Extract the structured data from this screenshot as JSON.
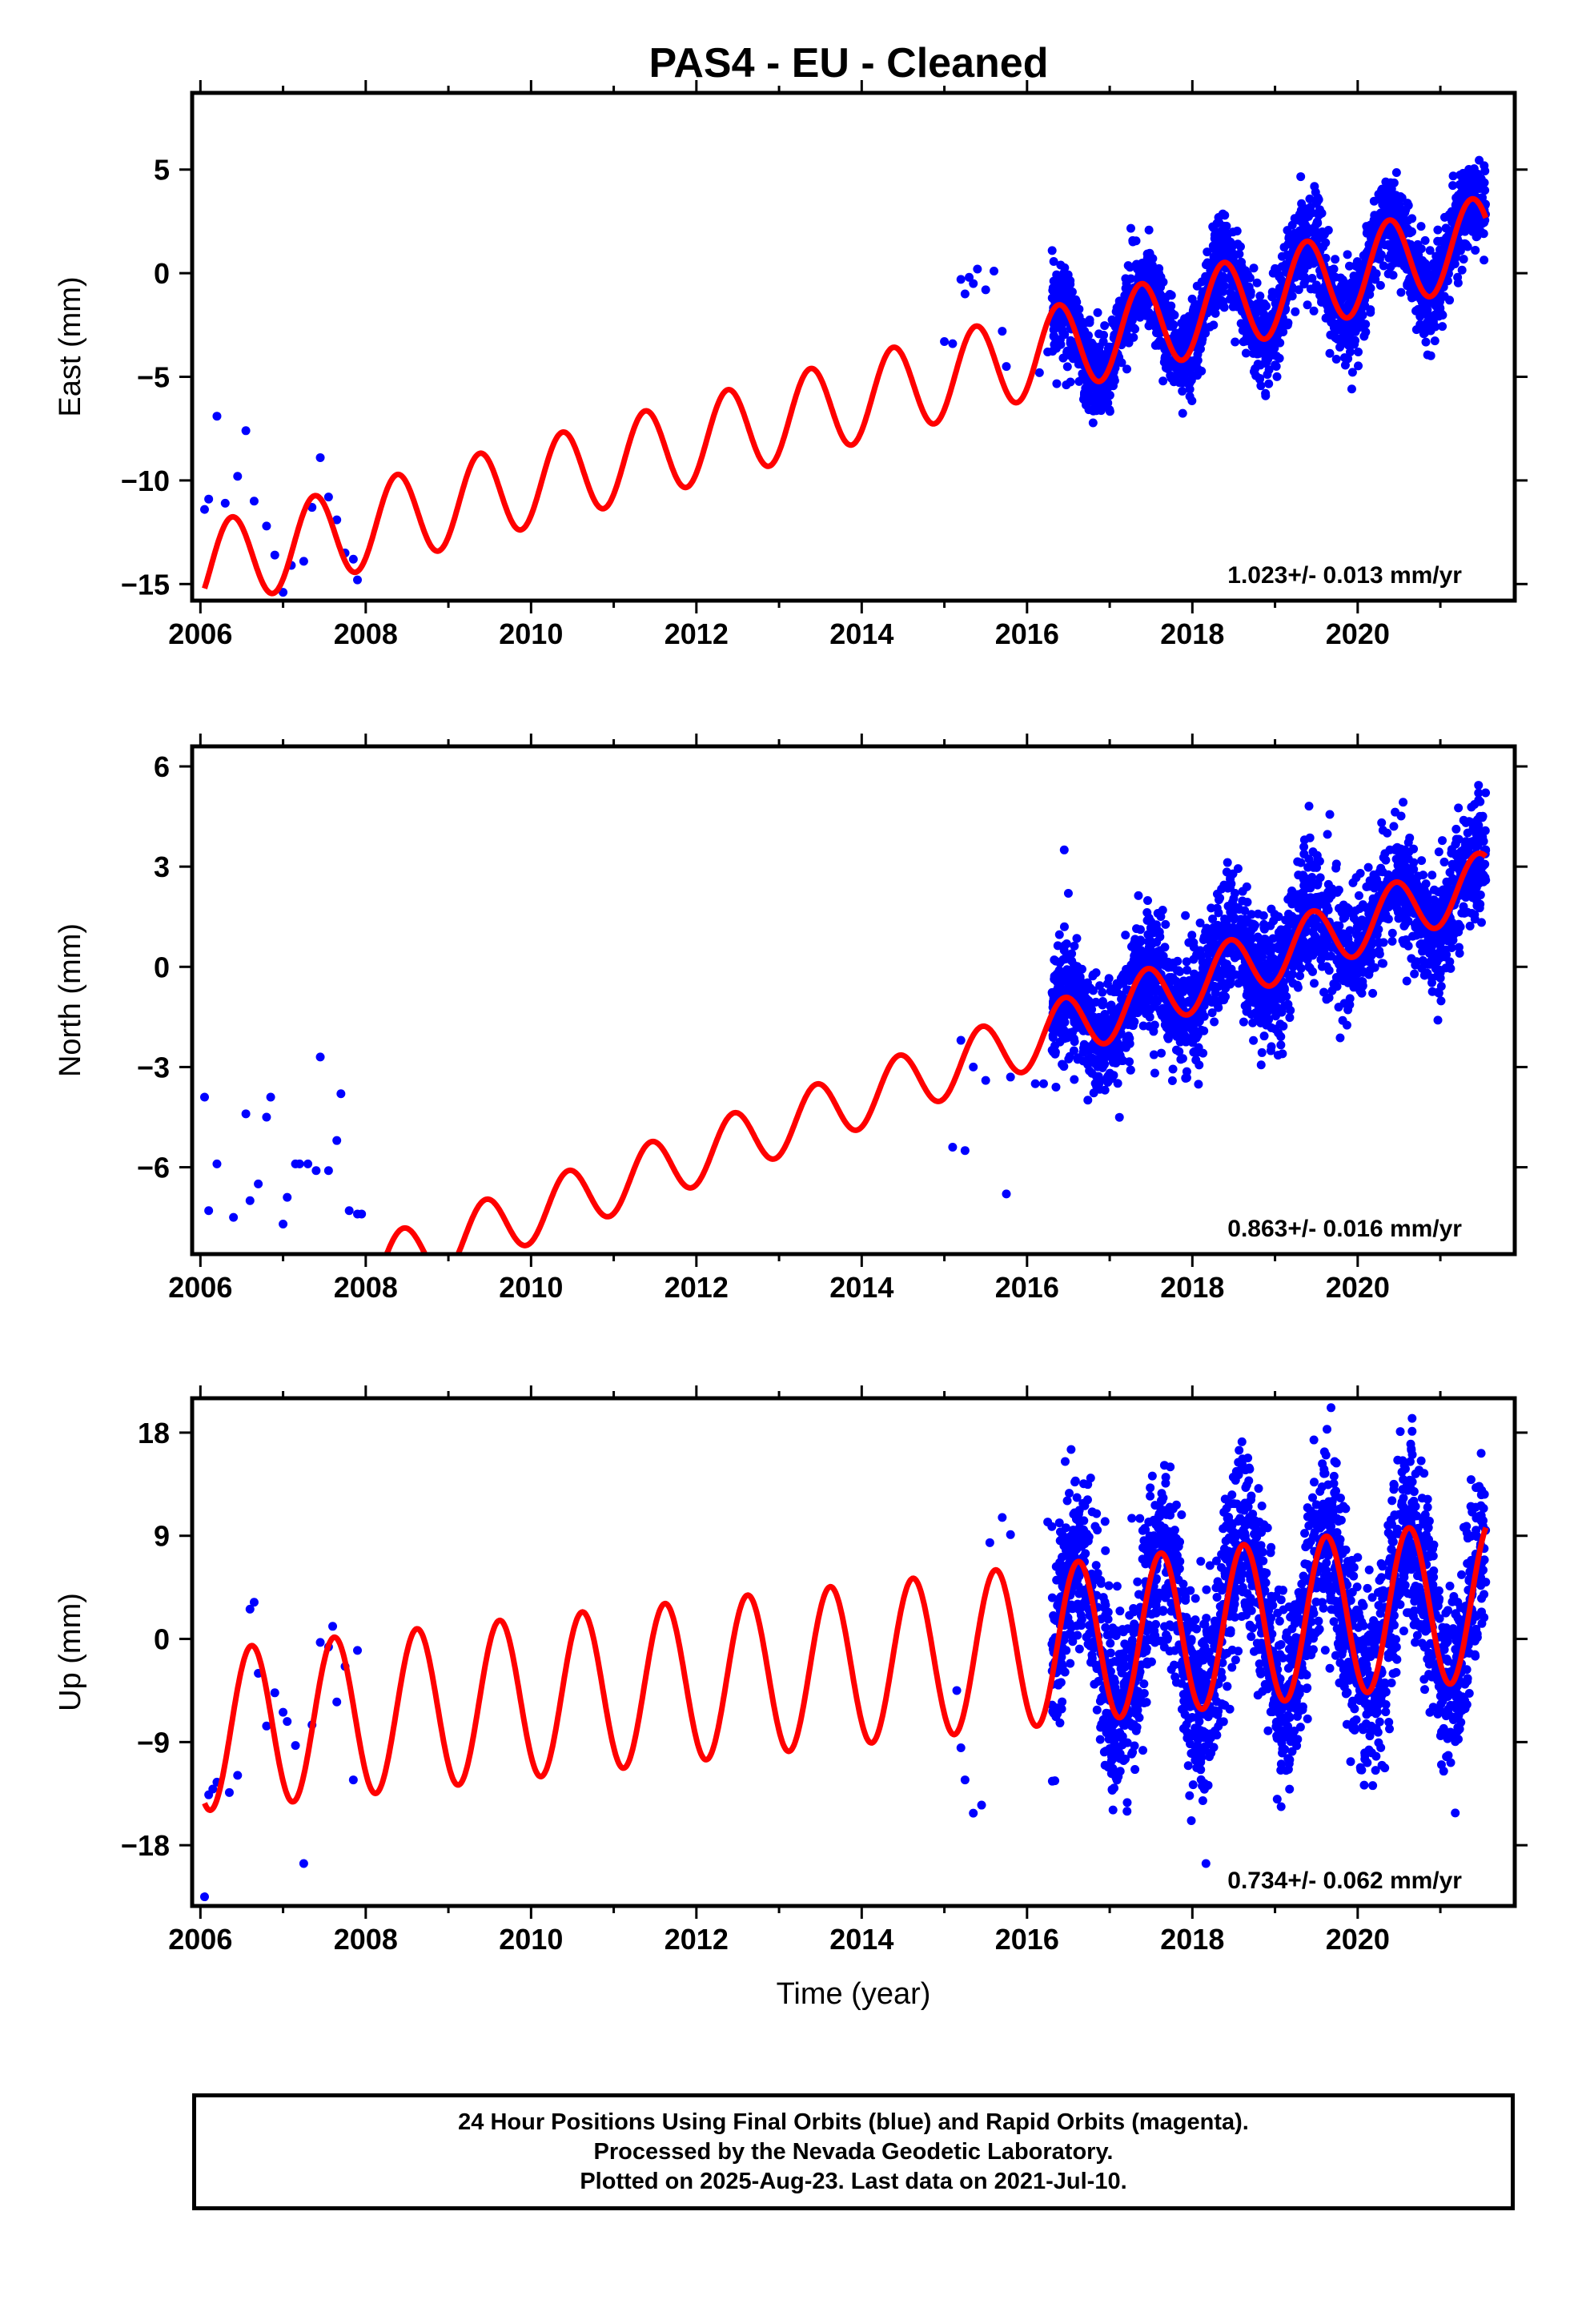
{
  "title": "PAS4  - EU - Cleaned",
  "colors": {
    "data": "#0000ff",
    "model": "#ff0000",
    "axis": "#000000"
  },
  "chart_data": [
    {
      "type": "scatter",
      "panel": "east",
      "ylabel": "East (mm)",
      "xlabel": "",
      "xlim": [
        2005.9,
        2021.9
      ],
      "ylim": [
        -15.8,
        8.7
      ],
      "yticks": [
        5,
        0,
        -5,
        -10,
        -15
      ],
      "ytick_labels": [
        "5",
        "0",
        "−5",
        "−10",
        "−15"
      ],
      "xticks": [
        2006,
        2008,
        2010,
        2012,
        2014,
        2016,
        2018,
        2020
      ],
      "xtick_labels": [
        "2006",
        "2008",
        "2010",
        "2012",
        "2014",
        "2016",
        "2018",
        "2020"
      ],
      "rate_label": "1.023+/- 0.013 mm/yr",
      "model": {
        "name": "",
        "start_value": -14.2,
        "rate": 1.023,
        "amplitude": 2.1,
        "peak_phase": 0.38,
        "x_range": [
          2006.05,
          2021.55
        ]
      },
      "series": [
        {
          "name": "",
          "kind": "points",
          "x": [
            2006.05,
            2006.1,
            2006.2,
            2006.3,
            2006.45,
            2006.55,
            2006.65,
            2006.8,
            2006.9,
            2007.0,
            2007.1,
            2007.25,
            2007.35,
            2007.45,
            2007.55,
            2007.65,
            2007.75,
            2007.85,
            2007.9,
            2015.0,
            2015.1,
            2015.2,
            2015.25,
            2015.3,
            2015.35,
            2015.4,
            2015.5,
            2015.6,
            2015.7,
            2015.75,
            2016.15,
            2016.25
          ],
          "y": [
            -11.4,
            -10.9,
            -6.9,
            -11.1,
            -9.8,
            -7.6,
            -11.0,
            -12.2,
            -13.6,
            -15.4,
            -14.1,
            -13.9,
            -11.3,
            -8.9,
            -10.8,
            -11.9,
            -13.5,
            -13.8,
            -14.8,
            -3.3,
            -3.4,
            -0.3,
            -1.0,
            -0.2,
            -0.5,
            0.2,
            -0.8,
            0.1,
            -2.8,
            -4.5,
            -4.8,
            -3.8
          ]
        },
        {
          "name": "",
          "kind": "dense",
          "x_range": [
            2016.3,
            2021.55
          ],
          "spread": 1.2,
          "count": 2400
        }
      ]
    },
    {
      "type": "scatter",
      "panel": "north",
      "ylabel": "North (mm)",
      "xlabel": "",
      "xlim": [
        2005.9,
        2021.9
      ],
      "ylim": [
        -8.6,
        6.6
      ],
      "yticks": [
        6,
        3,
        0,
        -3,
        -6
      ],
      "ytick_labels": [
        "6",
        "3",
        "0",
        "−3",
        "−6"
      ],
      "xticks": [
        2006,
        2008,
        2010,
        2012,
        2014,
        2016,
        2018,
        2020
      ],
      "xtick_labels": [
        "2006",
        "2008",
        "2010",
        "2012",
        "2014",
        "2016",
        "2018",
        "2020"
      ],
      "rate_label": "0.863+/- 0.016 mm/yr",
      "model": {
        "name": "",
        "start_value": -10.8,
        "rate": 0.863,
        "amplitude": 0.9,
        "peak_phase": 0.45,
        "x_range": [
          2006.05,
          2021.55
        ]
      },
      "series": [
        {
          "name": "",
          "kind": "points",
          "x": [
            2006.05,
            2006.1,
            2006.2,
            2006.4,
            2006.55,
            2006.6,
            2006.7,
            2006.8,
            2006.85,
            2007.0,
            2007.05,
            2007.15,
            2007.2,
            2007.3,
            2007.4,
            2007.45,
            2007.55,
            2007.65,
            2007.7,
            2007.8,
            2007.9,
            2007.95,
            2015.1,
            2015.2,
            2015.25,
            2015.35,
            2015.5,
            2015.75,
            2015.8,
            2016.1,
            2016.2,
            2016.35,
            2016.45,
            2016.5
          ],
          "y": [
            -3.9,
            -7.3,
            -5.9,
            -7.5,
            -4.4,
            -7.0,
            -6.5,
            -4.5,
            -3.9,
            -7.7,
            -6.9,
            -5.9,
            -5.9,
            -5.9,
            -6.1,
            -2.7,
            -6.1,
            -5.2,
            -3.8,
            -7.3,
            -7.4,
            -7.4,
            -5.4,
            -2.2,
            -5.5,
            -3.0,
            -3.4,
            -6.8,
            -3.3,
            -3.5,
            -3.5,
            -3.6,
            3.5,
            2.2
          ]
        },
        {
          "name": "",
          "kind": "dense",
          "x_range": [
            2016.3,
            2021.55
          ],
          "spread": 1.0,
          "count": 2400
        }
      ]
    },
    {
      "type": "scatter",
      "panel": "up",
      "ylabel": "Up (mm)",
      "xlabel": "Time (year)",
      "xlim": [
        2005.9,
        2021.9
      ],
      "ylim": [
        -23.3,
        21.0
      ],
      "yticks": [
        18,
        9,
        0,
        -9,
        -18
      ],
      "ytick_labels": [
        "18",
        "9",
        "0",
        "−9",
        "−18"
      ],
      "xticks": [
        2006,
        2008,
        2010,
        2012,
        2014,
        2016,
        2018,
        2020
      ],
      "xtick_labels": [
        "2006",
        "2008",
        "2010",
        "2012",
        "2014",
        "2016",
        "2018",
        "2020"
      ],
      "rate_label": "0.734+/- 0.062 mm/yr",
      "model": {
        "name": "",
        "start_value": -8.0,
        "rate": 0.734,
        "amplitude": 7.0,
        "peak_phase": 0.62,
        "x_range": [
          2006.05,
          2021.55
        ]
      },
      "series": [
        {
          "name": "",
          "kind": "points",
          "x": [
            2006.05,
            2006.1,
            2006.15,
            2006.2,
            2006.35,
            2006.45,
            2006.6,
            2006.65,
            2006.7,
            2006.8,
            2006.9,
            2007.0,
            2007.05,
            2007.15,
            2007.25,
            2007.35,
            2007.45,
            2007.55,
            2007.6,
            2007.65,
            2007.75,
            2007.85,
            2007.9,
            2015.15,
            2015.2,
            2015.25,
            2015.35,
            2015.45,
            2015.55,
            2015.7,
            2015.8,
            2016.25,
            2016.3,
            2016.6,
            2016.65,
            2016.75,
            2016.85
          ],
          "y": [
            -22.5,
            -13.6,
            -13.1,
            -12.5,
            -13.4,
            -11.9,
            2.6,
            3.2,
            -3.0,
            -7.6,
            -4.7,
            -6.4,
            -7.2,
            -9.3,
            -19.6,
            -7.5,
            -0.3,
            -0.7,
            1.1,
            -5.5,
            -2.4,
            -12.3,
            -1.0,
            -4.5,
            -9.5,
            -12.3,
            -15.2,
            -14.5,
            8.4,
            10.6,
            9.1,
            10.2,
            9.8,
            9.1,
            8.6,
            8.9,
            9.5
          ]
        },
        {
          "name": "",
          "kind": "dense",
          "x_range": [
            2016.3,
            2021.55
          ],
          "spread": 4.5,
          "count": 2600
        }
      ]
    }
  ],
  "footer": {
    "line1": "24 Hour Positions Using Final Orbits (blue) and Rapid Orbits (magenta).",
    "line2": "Processed by the Nevada Geodetic Laboratory.",
    "line3": "Plotted on 2025-Aug-23. Last data on 2021-Jul-10."
  }
}
